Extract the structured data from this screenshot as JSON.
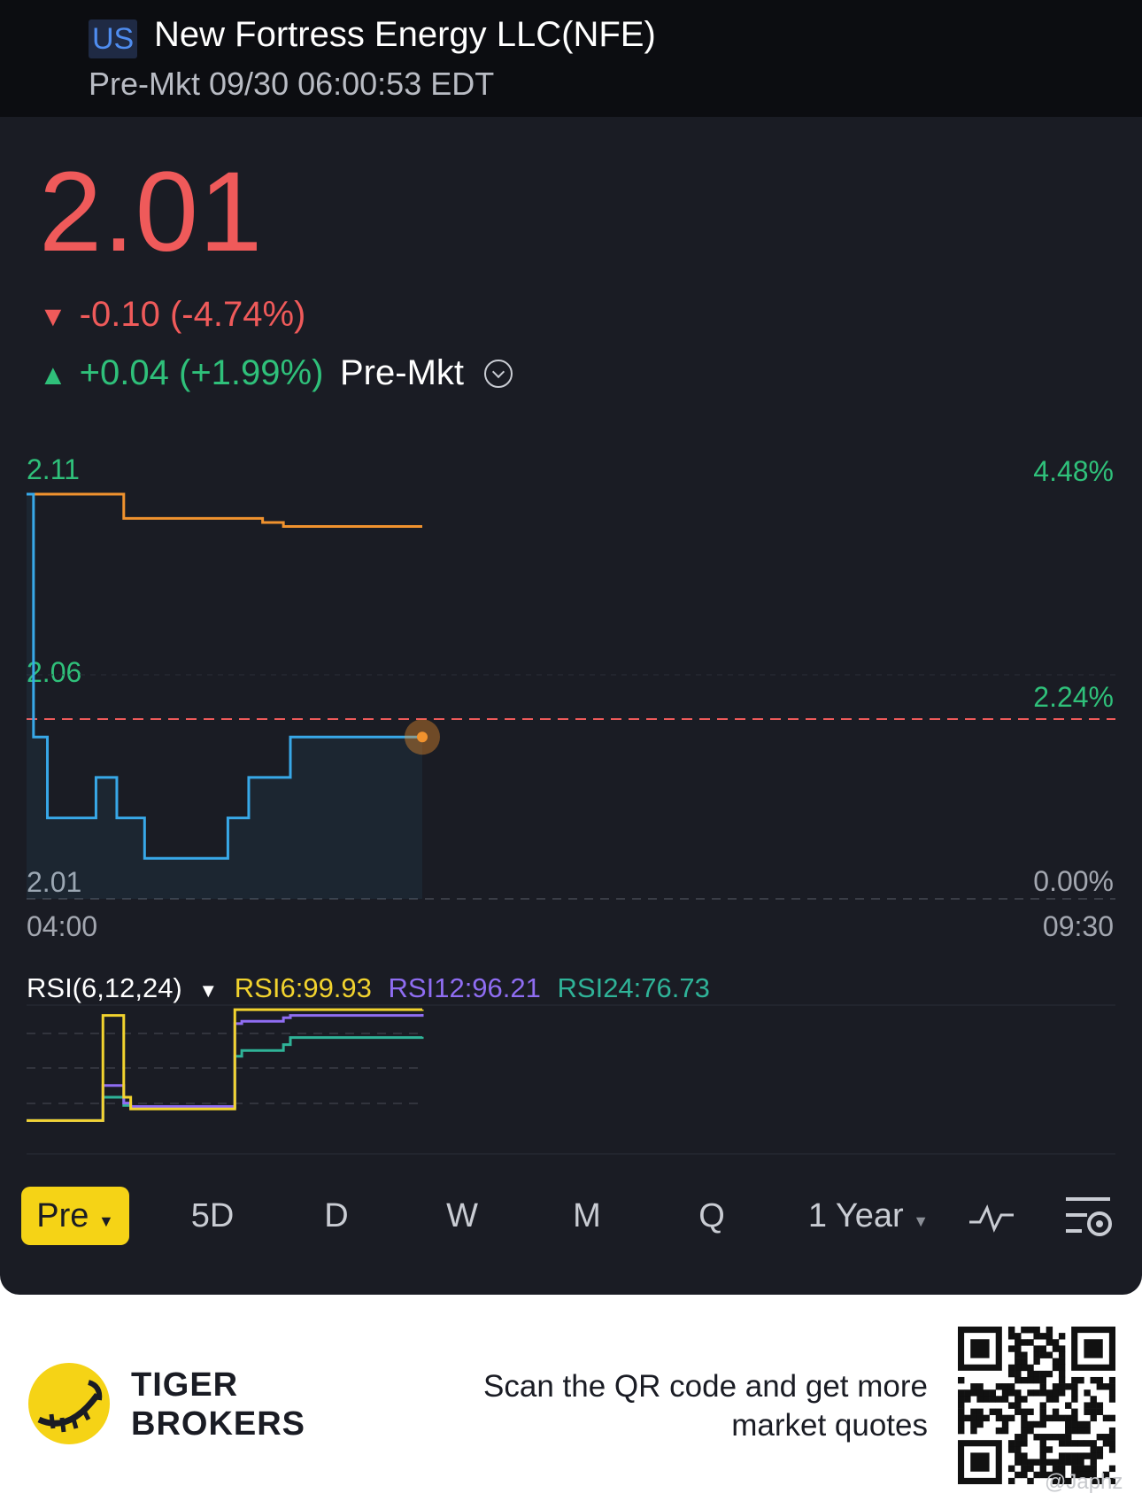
{
  "header": {
    "market_badge": "US",
    "company": "New Fortress Energy LLC(NFE)",
    "session_time": "Pre-Mkt 09/30 06:00:53 EDT"
  },
  "quote": {
    "price": "2.01",
    "change": "-0.10 (-4.74%)",
    "premarket_change": "+0.04 (+1.99%)",
    "premarket_label": "Pre-Mkt"
  },
  "chart_axes": {
    "y_top": "2.11",
    "y_mid": "2.06",
    "y_bottom": "2.01",
    "pct_top": "4.48%",
    "pct_mid": "2.24%",
    "pct_bottom": "0.00%",
    "x_start": "04:00",
    "x_end": "09:30"
  },
  "indicator": {
    "name": "RSI(6,12,24)",
    "rsi6": "RSI6:99.93",
    "rsi12": "RSI12:96.21",
    "rsi24": "RSI24:76.73"
  },
  "tabs": {
    "pre": "Pre",
    "five_day": "5D",
    "day": "D",
    "week": "W",
    "month": "M",
    "quarter": "Q",
    "year": "1 Year"
  },
  "footer": {
    "brand_line1": "TIGER",
    "brand_line2": "BROKERS",
    "scan_line1": "Scan the QR code and get more",
    "scan_line2": "market quotes",
    "watermark": "@Japhz"
  },
  "colors": {
    "price_red": "#ef5a5a",
    "up_green": "#2fc07a",
    "price_line": "#38a8e8",
    "avg_line": "#f0922e",
    "accent_yellow": "#f5d316"
  },
  "chart_data": {
    "type": "line",
    "x_range": [
      "04:00",
      "09:30"
    ],
    "ylim": [
      2.01,
      2.11
    ],
    "reference_price": 2.05,
    "series": [
      {
        "values": [
          2.11,
          2.05,
          2.05,
          2.03,
          2.03,
          2.03,
          2.03,
          2.03,
          2.03,
          2.03,
          2.04,
          2.04,
          2.04,
          2.03,
          2.03,
          2.03,
          2.03,
          2.02,
          2.02,
          2.02,
          2.02,
          2.02,
          2.02,
          2.02,
          2.02,
          2.02,
          2.02,
          2.02,
          2.02,
          2.03,
          2.03,
          2.03,
          2.04,
          2.04,
          2.04,
          2.04,
          2.04,
          2.04,
          2.05,
          2.05,
          2.05,
          2.05,
          2.05,
          2.05,
          2.05,
          2.05,
          2.05,
          2.05,
          2.05,
          2.05,
          2.05,
          2.05,
          2.05,
          2.05,
          2.05,
          2.05,
          2.05,
          2.05
        ]
      },
      {
        "values": [
          2.11,
          2.11,
          2.11,
          2.11,
          2.11,
          2.11,
          2.11,
          2.11,
          2.11,
          2.11,
          2.11,
          2.11,
          2.11,
          2.11,
          2.104,
          2.104,
          2.104,
          2.104,
          2.104,
          2.104,
          2.104,
          2.104,
          2.104,
          2.104,
          2.104,
          2.104,
          2.104,
          2.104,
          2.104,
          2.104,
          2.104,
          2.104,
          2.104,
          2.104,
          2.103,
          2.103,
          2.103,
          2.102,
          2.102,
          2.102,
          2.102,
          2.102,
          2.102,
          2.102,
          2.102,
          2.102,
          2.102,
          2.102,
          2.102,
          2.102,
          2.102,
          2.102,
          2.102,
          2.102,
          2.102,
          2.102,
          2.102,
          2.102
        ]
      }
    ],
    "rsi": {
      "ylim": [
        0,
        100
      ],
      "series": [
        {
          "name": "RSI6",
          "values": [
            5,
            5,
            5,
            5,
            5,
            5,
            5,
            5,
            5,
            5,
            5,
            95,
            95,
            95,
            25,
            15,
            15,
            15,
            15,
            15,
            15,
            15,
            15,
            15,
            15,
            15,
            15,
            15,
            15,
            15,
            99.9,
            99.9,
            99.9,
            99.9,
            99.9,
            99.9,
            99.9,
            99.9,
            99.9,
            99.9,
            99.9,
            99.9,
            99.9,
            99.9,
            99.9,
            99.9,
            99.9,
            99.9,
            99.9,
            99.9,
            99.9,
            99.9,
            99.9,
            99.9,
            99.9,
            99.9,
            99.9,
            99.93
          ]
        },
        {
          "name": "RSI12",
          "values": [
            5,
            5,
            5,
            5,
            5,
            5,
            5,
            5,
            5,
            5,
            5,
            35,
            35,
            35,
            20,
            17,
            17,
            17,
            17,
            17,
            17,
            17,
            17,
            17,
            17,
            17,
            17,
            17,
            17,
            17,
            88,
            90,
            90,
            90,
            90,
            90,
            90,
            93,
            95,
            95,
            95,
            95,
            95,
            95,
            95,
            95,
            95,
            95,
            95,
            95,
            95,
            95,
            95,
            95,
            95,
            95,
            95,
            96.21
          ]
        },
        {
          "name": "RSI24",
          "values": [
            5,
            5,
            5,
            5,
            5,
            5,
            5,
            5,
            5,
            5,
            5,
            25,
            25,
            25,
            18,
            16,
            16,
            16,
            16,
            16,
            16,
            16,
            16,
            16,
            16,
            16,
            16,
            16,
            16,
            16,
            60,
            65,
            65,
            65,
            65,
            65,
            65,
            70,
            76,
            76,
            76,
            76,
            76,
            76,
            76,
            76,
            76,
            76,
            76,
            76,
            76,
            76,
            76,
            76,
            76,
            76,
            76,
            76.73
          ]
        }
      ]
    }
  }
}
